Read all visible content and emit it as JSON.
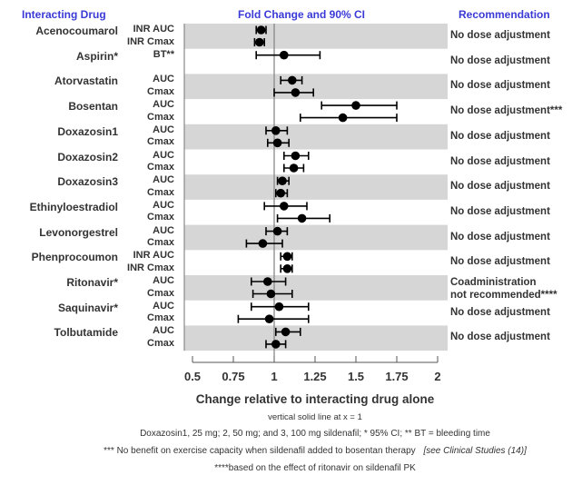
{
  "headers": {
    "drug": "Interacting Drug",
    "ci": "Fold Change and 90% CI",
    "rec": "Recommendation"
  },
  "chart_data": {
    "type": "forest",
    "title": "Fold Change and 90% CI",
    "xlabel": "Change relative to interacting drug alone",
    "xlim": [
      0.5,
      2
    ],
    "xticks": [
      "0.5",
      "0.75",
      "1",
      "1.25",
      "1.5",
      "1.75",
      "2"
    ],
    "xtick_values": [
      0.5,
      0.75,
      1,
      1.25,
      1.5,
      1.75,
      2
    ],
    "reference_line": 1,
    "groups": [
      {
        "drug": "Acenocoumarol",
        "recommendation": [
          "No dose adjustment"
        ],
        "rows": [
          {
            "metric": "INR AUC",
            "value": 0.92,
            "lo": 0.89,
            "hi": 0.95
          },
          {
            "metric": "INR Cmax",
            "value": 0.91,
            "lo": 0.88,
            "hi": 0.94
          }
        ]
      },
      {
        "drug": "Aspirin*",
        "recommendation": [
          "No dose adjustment"
        ],
        "rows": [
          {
            "metric": "BT**",
            "value": 1.06,
            "lo": 0.89,
            "hi": 1.28
          }
        ]
      },
      {
        "drug": "Atorvastatin",
        "recommendation": [
          "No dose adjustment"
        ],
        "rows": [
          {
            "metric": "AUC",
            "value": 1.11,
            "lo": 1.04,
            "hi": 1.17
          },
          {
            "metric": "Cmax",
            "value": 1.13,
            "lo": 1.0,
            "hi": 1.24
          }
        ]
      },
      {
        "drug": "Bosentan",
        "recommendation": [
          "No dose adjustment***"
        ],
        "rows": [
          {
            "metric": "AUC",
            "value": 1.5,
            "lo": 1.29,
            "hi": 1.75
          },
          {
            "metric": "Cmax",
            "value": 1.42,
            "lo": 1.16,
            "hi": 1.75
          }
        ]
      },
      {
        "drug": "Doxazosin1",
        "recommendation": [
          "No dose adjustment"
        ],
        "rows": [
          {
            "metric": "AUC",
            "value": 1.01,
            "lo": 0.95,
            "hi": 1.08
          },
          {
            "metric": "Cmax",
            "value": 1.02,
            "lo": 0.96,
            "hi": 1.09
          }
        ]
      },
      {
        "drug": "Doxazosin2",
        "recommendation": [
          "No dose adjustment"
        ],
        "rows": [
          {
            "metric": "AUC",
            "value": 1.13,
            "lo": 1.06,
            "hi": 1.21
          },
          {
            "metric": "Cmax",
            "value": 1.12,
            "lo": 1.06,
            "hi": 1.18
          }
        ]
      },
      {
        "drug": "Doxazosin3",
        "recommendation": [
          "No dose adjustment"
        ],
        "rows": [
          {
            "metric": "AUC",
            "value": 1.05,
            "lo": 1.02,
            "hi": 1.09
          },
          {
            "metric": "Cmax",
            "value": 1.04,
            "lo": 1.01,
            "hi": 1.08
          }
        ]
      },
      {
        "drug": "Ethinyloestradiol",
        "recommendation": [
          "No dose adjustment"
        ],
        "rows": [
          {
            "metric": "AUC",
            "value": 1.06,
            "lo": 0.94,
            "hi": 1.2
          },
          {
            "metric": "Cmax",
            "value": 1.17,
            "lo": 1.02,
            "hi": 1.34
          }
        ]
      },
      {
        "drug": "Levonorgestrel",
        "recommendation": [
          "No dose adjustment"
        ],
        "rows": [
          {
            "metric": "AUC",
            "value": 1.02,
            "lo": 0.95,
            "hi": 1.08
          },
          {
            "metric": "Cmax",
            "value": 0.93,
            "lo": 0.83,
            "hi": 1.05
          }
        ]
      },
      {
        "drug": "Phenprocoumon",
        "recommendation": [
          "No dose adjustment"
        ],
        "rows": [
          {
            "metric": "INR AUC",
            "value": 1.08,
            "lo": 1.04,
            "hi": 1.11
          },
          {
            "metric": "INR Cmax",
            "value": 1.08,
            "lo": 1.04,
            "hi": 1.11
          }
        ]
      },
      {
        "drug": "Ritonavir*",
        "recommendation": [
          "Coadministration",
          "not recommended****"
        ],
        "rows": [
          {
            "metric": "AUC",
            "value": 0.96,
            "lo": 0.86,
            "hi": 1.07
          },
          {
            "metric": "Cmax",
            "value": 0.98,
            "lo": 0.87,
            "hi": 1.11
          }
        ]
      },
      {
        "drug": "Saquinavir*",
        "recommendation": [
          "No dose adjustment"
        ],
        "rows": [
          {
            "metric": "AUC",
            "value": 1.03,
            "lo": 0.86,
            "hi": 1.21
          },
          {
            "metric": "Cmax",
            "value": 0.97,
            "lo": 0.78,
            "hi": 1.21
          }
        ]
      },
      {
        "drug": "Tolbutamide",
        "recommendation": [
          "No dose adjustment"
        ],
        "rows": [
          {
            "metric": "AUC",
            "value": 1.07,
            "lo": 1.01,
            "hi": 1.16
          },
          {
            "metric": "Cmax",
            "value": 1.01,
            "lo": 0.95,
            "hi": 1.07
          }
        ]
      }
    ]
  },
  "notes": {
    "line1": "vertical solid line at x = 1",
    "line2": "Doxazosin1, 25 mg; 2, 50 mg; and 3, 100 mg sildenafil; * 95% CI; ** BT = bleeding time",
    "line3_main": "*** No benefit on exercise capacity when sildenafil added to bosentan therapy",
    "line3_ref": "[see Clinical Studies (14)]",
    "line4": "****based on the effect of ritonavir on sildenafil PK"
  },
  "colors": {
    "header": "#3a3ad6",
    "band": "#d6d6d6",
    "mark": "#000000",
    "refline": "#888888"
  }
}
